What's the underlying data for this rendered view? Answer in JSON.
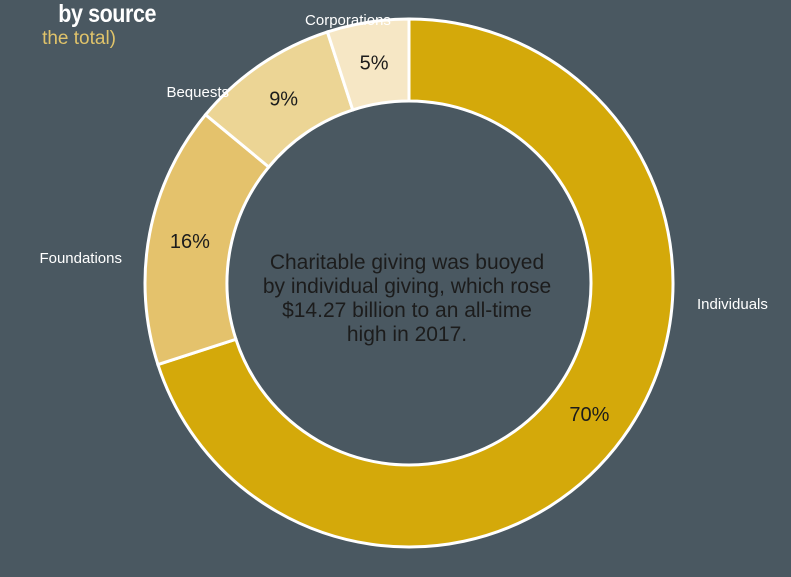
{
  "header": {
    "title": "by source",
    "subtitle": "the total)"
  },
  "center_text": "Charitable giving was buoyed by individual giving, which rose $14.27 billion to an all-time high in 2017.",
  "colors": {
    "background": "#4a5861",
    "individuals": "#d4a90a",
    "foundations": "#e4c26c",
    "bequests": "#ecd595",
    "corporations": "#f6e7c5",
    "separator": "#ffffff"
  },
  "chart_data": {
    "type": "pie",
    "variant": "donut",
    "title": "by source",
    "subtitle": "the total)",
    "slices": [
      {
        "label": "Individuals",
        "value": 70,
        "value_label": "70%",
        "color": "#d4a90a"
      },
      {
        "label": "Foundations",
        "value": 16,
        "value_label": "16%",
        "color": "#e4c26c"
      },
      {
        "label": "Bequests",
        "value": 9,
        "value_label": "9%",
        "color": "#ecd595"
      },
      {
        "label": "Corporations",
        "value": 5,
        "value_label": "5%",
        "color": "#f6e7c5"
      }
    ]
  }
}
